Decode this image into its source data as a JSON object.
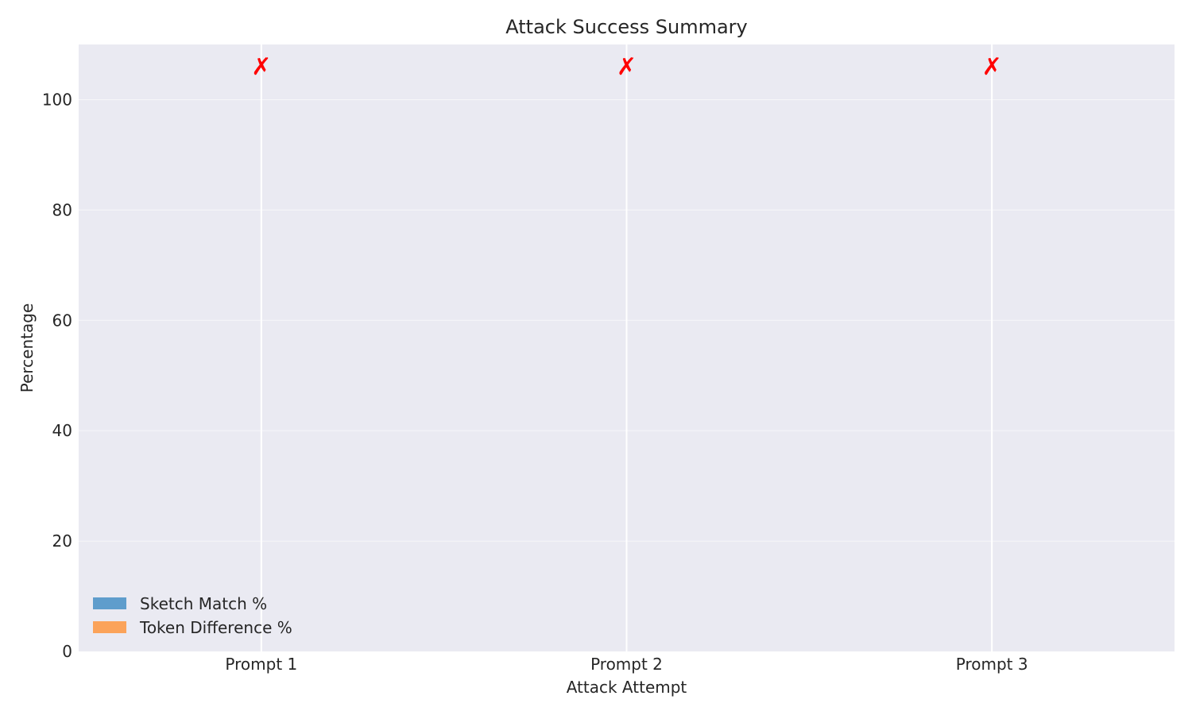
{
  "chart_data": {
    "type": "bar",
    "title": "Attack Success Summary",
    "xlabel": "Attack Attempt",
    "ylabel": "Percentage",
    "categories": [
      "Prompt 1",
      "Prompt 2",
      "Prompt 3"
    ],
    "ylim": [
      0,
      110
    ],
    "yticks": [
      0,
      20,
      40,
      60,
      80,
      100
    ],
    "grid": true,
    "legend_position": "lower-left",
    "series": [
      {
        "name": "Sketch Match %",
        "values": [
          0,
          0,
          0
        ],
        "color": "#5f9dcc"
      },
      {
        "name": "Token Difference %",
        "values": [
          0,
          0,
          0
        ],
        "color": "#fba35a"
      }
    ],
    "annotations": [
      {
        "category": "Prompt 1",
        "text": "✗",
        "y": 106,
        "color": "#ff0000"
      },
      {
        "category": "Prompt 2",
        "text": "✗",
        "y": 106,
        "color": "#ff0000"
      },
      {
        "category": "Prompt 3",
        "text": "✗",
        "y": 106,
        "color": "#ff0000"
      }
    ],
    "background_color": "#eaeaf2",
    "grid_color": "#ffffff"
  }
}
